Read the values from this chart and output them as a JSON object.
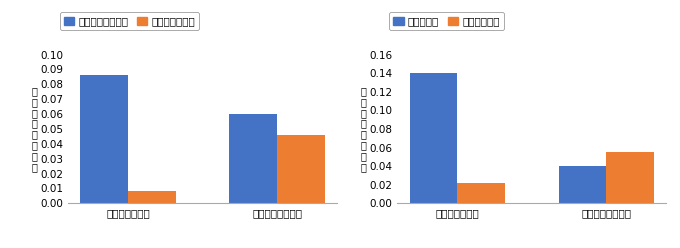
{
  "left_chart": {
    "categories": [
      "リース資産投資",
      "有形固定資産投資"
    ],
    "series": [
      {
        "label": "中古市場が未発達",
        "values": [
          0.086,
          0.06
        ],
        "color": "#4472c4"
      },
      {
        "label": "中古市場が発達",
        "values": [
          0.008,
          0.046
        ],
        "color": "#ed7d31"
      }
    ],
    "ylim": [
      0.0,
      0.1
    ],
    "yticks": [
      0.0,
      0.01,
      0.02,
      0.03,
      0.04,
      0.05,
      0.06,
      0.07,
      0.08,
      0.09,
      0.1
    ],
    "ylabel": "投資機会の感応度"
  },
  "right_chart": {
    "categories": [
      "リース資産投資",
      "有形固定資産投資"
    ],
    "series": [
      {
        "label": "金融制約的",
        "values": [
          0.14,
          0.04
        ],
        "color": "#4472c4"
      },
      {
        "label": "非金融制約的",
        "values": [
          0.022,
          0.055
        ],
        "color": "#ed7d31"
      }
    ],
    "ylim": [
      0.0,
      0.16
    ],
    "yticks": [
      0.0,
      0.02,
      0.04,
      0.06,
      0.08,
      0.1,
      0.12,
      0.14,
      0.16
    ],
    "ylabel": "投資機会の感応度"
  },
  "bar_width": 0.32,
  "background_color": "#ffffff",
  "font_size": 8,
  "tick_font_size": 7.5,
  "legend_font_size": 7.5,
  "ylabel_font_size": 7
}
